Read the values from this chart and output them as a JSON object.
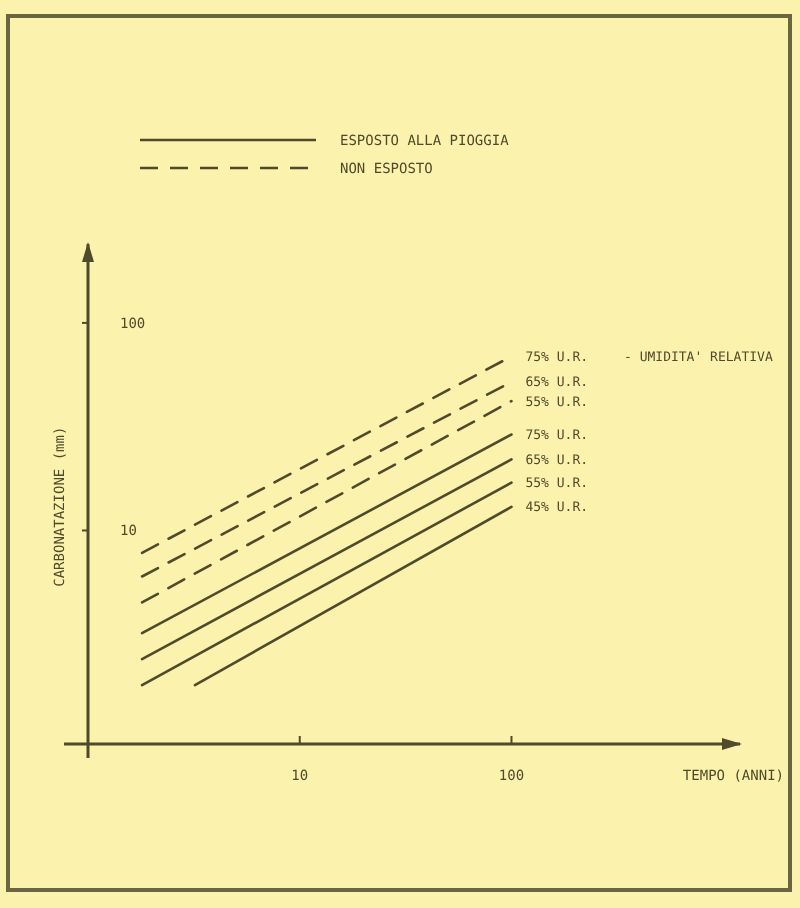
{
  "chart_data": {
    "type": "line",
    "xlabel": "TEMPO (ANNI)",
    "ylabel": "CARBONATAZIONE (mm)",
    "log": "xy",
    "xlim": [
      1,
      1200
    ],
    "ylim": [
      1,
      240
    ],
    "xticks": [
      10,
      100
    ],
    "yticks": [
      10,
      100
    ],
    "grid": false,
    "legend": "top",
    "annotations": [
      "ESPOSTO ALLA PIOGGIA",
      "NON ESPOSTO",
      "- UMIDITA' RELATIVA"
    ],
    "series": [
      {
        "name": "75% U.R.",
        "color": "#4f4a2a",
        "line_style": "dashed",
        "x": [
          1.8,
          100
        ],
        "values": [
          7.8,
          69
        ]
      },
      {
        "name": "65% U.R.",
        "color": "#4f4a2a",
        "line_style": "dashed",
        "x": [
          1.8,
          100
        ],
        "values": [
          6,
          52
        ]
      },
      {
        "name": "55% U.R.",
        "color": "#4f4a2a",
        "line_style": "dashed",
        "x": [
          1.8,
          100
        ],
        "values": [
          4.5,
          42
        ]
      },
      {
        "name": "75% U.R.",
        "color": "#4f4a2a",
        "line_style": "solid",
        "x": [
          1.8,
          100
        ],
        "values": [
          3.2,
          29
        ]
      },
      {
        "name": "65% U.R.",
        "color": "#4f4a2a",
        "line_style": "solid",
        "x": [
          1.8,
          100
        ],
        "values": [
          2.4,
          22
        ]
      },
      {
        "name": "55% U.R.",
        "color": "#4f4a2a",
        "line_style": "solid",
        "x": [
          1.8,
          100
        ],
        "values": [
          1.8,
          17
        ]
      },
      {
        "name": "45% U.R.",
        "color": "#4f4a2a",
        "line_style": "solid",
        "x": [
          3.2,
          100
        ],
        "values": [
          1.8,
          13
        ]
      }
    ]
  }
}
